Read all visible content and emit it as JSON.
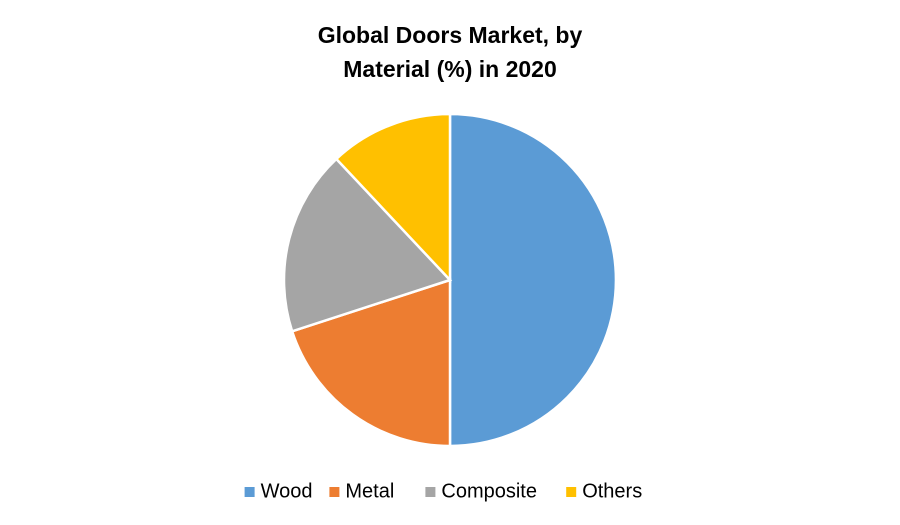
{
  "chart_data": {
    "type": "pie",
    "title": "Global Doors Market, by Material (%) in 2020",
    "categories": [
      "Wood",
      "Metal",
      "Composite",
      "Others"
    ],
    "values": [
      50,
      20,
      18,
      12
    ],
    "colors": [
      "#5b9bd5",
      "#ed7d31",
      "#a5a5a5",
      "#ffc000"
    ],
    "legend": "bottom"
  }
}
